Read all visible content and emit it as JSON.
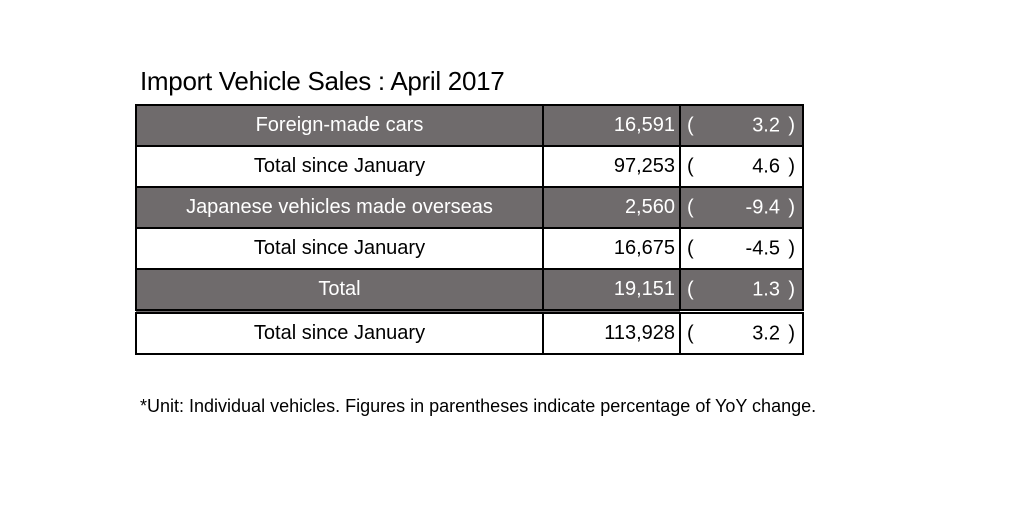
{
  "title": "Import Vehicle Sales : April 2017",
  "table": {
    "rows": [
      {
        "label": "Foreign-made cars",
        "value": "16,591",
        "change": "3.2",
        "shaded": true
      },
      {
        "label": "Total since January",
        "value": "97,253",
        "change": "4.6",
        "shaded": false
      },
      {
        "label": "Japanese vehicles made overseas",
        "value": "2,560",
        "change": "-9.4",
        "shaded": true
      },
      {
        "label": "Total since January",
        "value": "16,675",
        "change": "-4.5",
        "shaded": false
      },
      {
        "label": "Total",
        "value": "19,151",
        "change": "1.3",
        "shaded": true
      },
      {
        "label": "Total since January",
        "value": "113,928",
        "change": "3.2",
        "shaded": false
      }
    ],
    "paren_open": "(",
    "paren_close": ")"
  },
  "footnote": "*Unit: Individual vehicles. Figures in parentheses indicate percentage of YoY change.",
  "colors": {
    "shaded_row_background": "#6f6b6c",
    "shaded_row_text": "#ffffff",
    "border": "#000000"
  }
}
